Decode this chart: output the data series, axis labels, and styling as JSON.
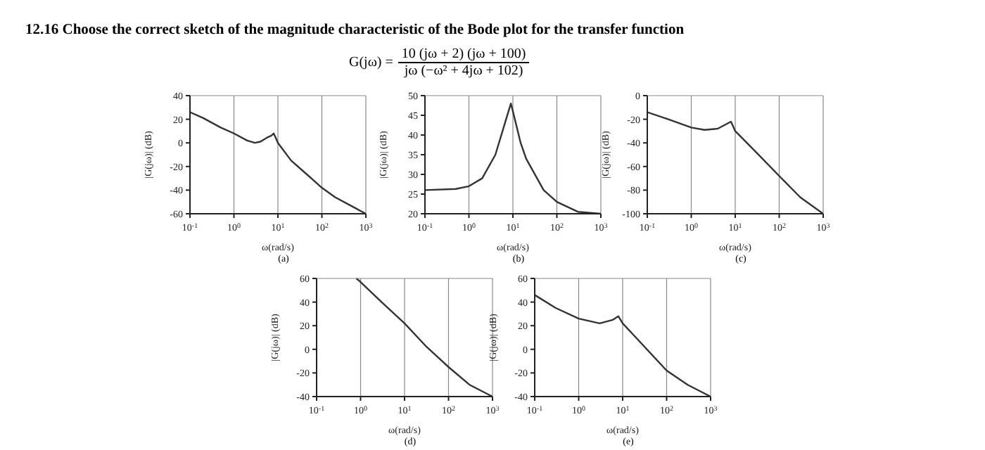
{
  "chart_data": [
    {
      "type": "other",
      "title": "12.16 Choose the correct sketch of the magnitude characteristic of the Bode plot for the transfer function",
      "annotations": [
        "G(jω) =",
        "10 (jω + 2) (jω + 100)",
        "jω (−ω² + 4jω + 102)"
      ]
    },
    {
      "type": "line",
      "xlabel": "ω(rad/s)",
      "ylabel": "|G(jω)| (dB)",
      "annotations": [
        "(a)"
      ],
      "log": "x",
      "grid": true,
      "marker": "none",
      "line_style": "solid",
      "xlim": [
        0.1,
        1000
      ],
      "xticks": [
        {
          "value": 0.1,
          "label": "10$^{-1}$"
        },
        {
          "value": 1,
          "label": "10$^{0}$"
        },
        {
          "value": 10,
          "label": "10$^{1}$"
        },
        {
          "value": 100,
          "label": "10$^{2}$"
        },
        {
          "value": 1000,
          "label": "10$^{3}$"
        }
      ],
      "ylim": [
        -60,
        40
      ],
      "yticks": [
        -60,
        -40,
        -20,
        0,
        20,
        40
      ],
      "series": [
        {
          "color": "#333333",
          "x": [
            0.1,
            0.2,
            0.5,
            1,
            2,
            3,
            4,
            6,
            7,
            8,
            9,
            10,
            20,
            50,
            100,
            200,
            500,
            1000
          ],
          "values": [
            26,
            21,
            13,
            8,
            2,
            0,
            1,
            5,
            6,
            8,
            4,
            0,
            -15,
            -28,
            -38,
            -46,
            -54,
            -60
          ]
        }
      ]
    },
    {
      "type": "line",
      "xlabel": "ω(rad/s)",
      "ylabel": "|G(jω)| (dB)",
      "annotations": [
        "(b)"
      ],
      "log": "x",
      "grid": true,
      "marker": "none",
      "line_style": "solid",
      "xlim": [
        0.1,
        1000
      ],
      "xticks": [
        {
          "value": 0.1,
          "label": "10$^{-1}$"
        },
        {
          "value": 1,
          "label": "10$^{0}$"
        },
        {
          "value": 10,
          "label": "10$^{1}$"
        },
        {
          "value": 100,
          "label": "10$^{2}$"
        },
        {
          "value": 1000,
          "label": "10$^{3}$"
        }
      ],
      "ylim": [
        20,
        50
      ],
      "yticks": [
        20,
        25,
        30,
        35,
        40,
        45,
        50
      ],
      "series": [
        {
          "color": "#333333",
          "x": [
            0.1,
            0.5,
            1,
            2,
            4,
            7,
            9,
            10,
            15,
            20,
            50,
            100,
            300,
            1000
          ],
          "values": [
            26,
            26.3,
            27,
            29,
            35,
            44,
            48,
            46,
            38,
            34,
            26,
            23,
            20.5,
            20
          ]
        }
      ]
    },
    {
      "type": "line",
      "xlabel": "ω(rad/s)",
      "ylabel": "|G(jω)| (dB)",
      "annotations": [
        "(c)"
      ],
      "log": "x",
      "grid": true,
      "marker": "none",
      "line_style": "solid",
      "xlim": [
        0.1,
        1000
      ],
      "xticks": [
        {
          "value": 0.1,
          "label": "10$^{-1}$"
        },
        {
          "value": 1,
          "label": "10$^{0}$"
        },
        {
          "value": 10,
          "label": "10$^{1}$"
        },
        {
          "value": 100,
          "label": "10$^{2}$"
        },
        {
          "value": 1000,
          "label": "10$^{3}$"
        }
      ],
      "ylim": [
        -100,
        0
      ],
      "yticks": [
        -100,
        -80,
        -60,
        -40,
        -20,
        0
      ],
      "series": [
        {
          "color": "#333333",
          "x": [
            0.1,
            0.3,
            1,
            2,
            4,
            8,
            10,
            30,
            100,
            300,
            1000
          ],
          "values": [
            -14,
            -20,
            -27,
            -29,
            -28,
            -22,
            -30,
            -48,
            -68,
            -86,
            -100
          ]
        }
      ]
    },
    {
      "type": "line",
      "xlabel": "ω(rad/s)",
      "ylabel": "|G(jω)| (dB)",
      "annotations": [
        "(d)"
      ],
      "log": "x",
      "grid": true,
      "marker": "none",
      "line_style": "solid",
      "xlim": [
        0.1,
        1000
      ],
      "xticks": [
        {
          "value": 0.1,
          "label": "10$^{-1}$"
        },
        {
          "value": 1,
          "label": "10$^{0}$"
        },
        {
          "value": 10,
          "label": "10$^{1}$"
        },
        {
          "value": 100,
          "label": "10$^{2}$"
        },
        {
          "value": 1000,
          "label": "10$^{3}$"
        }
      ],
      "ylim": [
        -40,
        60
      ],
      "yticks": [
        -40,
        -20,
        0,
        20,
        40,
        60
      ],
      "series": [
        {
          "color": "#333333",
          "x": [
            0.8,
            1,
            3,
            10,
            30,
            100,
            300,
            1000
          ],
          "values": [
            60,
            57,
            40,
            22,
            3,
            -15,
            -30,
            -40
          ]
        }
      ]
    },
    {
      "type": "line",
      "xlabel": "ω(rad/s)",
      "ylabel": "|G(jω)| (dB)",
      "annotations": [
        "(e)"
      ],
      "log": "x",
      "grid": true,
      "marker": "none",
      "line_style": "solid",
      "xlim": [
        0.1,
        1000
      ],
      "xticks": [
        {
          "value": 0.1,
          "label": "10$^{-1}$"
        },
        {
          "value": 1,
          "label": "10$^{0}$"
        },
        {
          "value": 10,
          "label": "10$^{1}$"
        },
        {
          "value": 100,
          "label": "10$^{2}$"
        },
        {
          "value": 1000,
          "label": "10$^{3}$"
        }
      ],
      "ylim": [
        -40,
        60
      ],
      "yticks": [
        -40,
        -20,
        0,
        20,
        40,
        60
      ],
      "series": [
        {
          "color": "#333333",
          "x": [
            0.1,
            0.3,
            1,
            3,
            6,
            8,
            10,
            20,
            100,
            300,
            1000
          ],
          "values": [
            46,
            35,
            26,
            22,
            25,
            28,
            22,
            10,
            -18,
            -30,
            -40
          ]
        }
      ]
    }
  ]
}
